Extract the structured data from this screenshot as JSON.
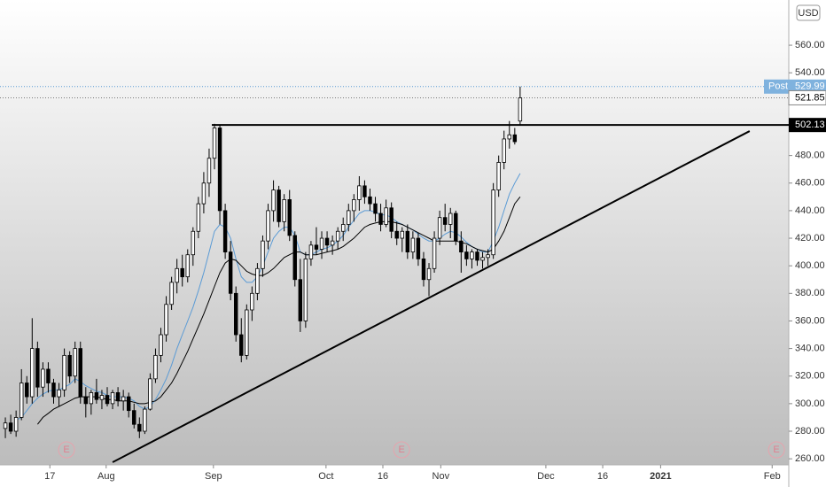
{
  "chart_data": {
    "type": "candlestick",
    "currency": "USD",
    "open": [
      282,
      286,
      280,
      290,
      315,
      305,
      340,
      312,
      325,
      315,
      305,
      310,
      335,
      320,
      340,
      305,
      300,
      308,
      303,
      306,
      300,
      308,
      302,
      305,
      295,
      285,
      280,
      296,
      318,
      335,
      350,
      372,
      388,
      398,
      392,
      408,
      425,
      445,
      460,
      478,
      500,
      440,
      410,
      380,
      350,
      335,
      368,
      380,
      398,
      418,
      440,
      455,
      432,
      448,
      422,
      390,
      360,
      405,
      415,
      412,
      420,
      415,
      418,
      425,
      430,
      440,
      448,
      458,
      450,
      445,
      438,
      430,
      442,
      425,
      420,
      425,
      410,
      420,
      405,
      390,
      398,
      420,
      435,
      430,
      438,
      418,
      410,
      405,
      410,
      404,
      406,
      408,
      455,
      475,
      492,
      495,
      505
    ],
    "high": [
      290,
      292,
      295,
      325,
      320,
      362,
      345,
      330,
      330,
      318,
      315,
      340,
      338,
      345,
      345,
      312,
      310,
      318,
      310,
      312,
      310,
      312,
      310,
      308,
      300,
      290,
      298,
      322,
      340,
      355,
      378,
      392,
      405,
      408,
      412,
      428,
      450,
      468,
      485,
      503,
      502,
      445,
      418,
      385,
      362,
      372,
      385,
      402,
      422,
      445,
      462,
      458,
      452,
      455,
      425,
      405,
      410,
      418,
      428,
      425,
      425,
      422,
      428,
      435,
      445,
      452,
      465,
      462,
      456,
      450,
      445,
      448,
      446,
      432,
      428,
      430,
      425,
      424,
      410,
      402,
      425,
      440,
      445,
      442,
      440,
      425,
      415,
      412,
      412,
      410,
      412,
      460,
      480,
      498,
      505,
      500,
      530
    ],
    "low": [
      275,
      278,
      276,
      288,
      300,
      300,
      305,
      305,
      308,
      300,
      298,
      305,
      315,
      315,
      300,
      290,
      292,
      300,
      296,
      298,
      296,
      298,
      295,
      290,
      282,
      275,
      278,
      295,
      315,
      330,
      345,
      368,
      380,
      385,
      388,
      400,
      420,
      438,
      450,
      470,
      430,
      405,
      375,
      345,
      330,
      332,
      360,
      375,
      392,
      412,
      432,
      428,
      425,
      418,
      385,
      352,
      355,
      400,
      408,
      405,
      410,
      408,
      412,
      418,
      425,
      432,
      440,
      445,
      440,
      432,
      425,
      428,
      420,
      415,
      410,
      405,
      405,
      400,
      385,
      378,
      395,
      415,
      425,
      420,
      415,
      395,
      400,
      398,
      400,
      398,
      400,
      405,
      450,
      470,
      485,
      488,
      502
    ],
    "close": [
      286,
      280,
      290,
      315,
      305,
      340,
      312,
      325,
      315,
      305,
      310,
      335,
      320,
      340,
      305,
      300,
      308,
      303,
      306,
      300,
      308,
      302,
      305,
      295,
      285,
      280,
      296,
      318,
      335,
      350,
      372,
      388,
      398,
      392,
      408,
      425,
      445,
      460,
      478,
      500,
      440,
      410,
      380,
      350,
      335,
      368,
      380,
      398,
      418,
      440,
      455,
      432,
      448,
      422,
      390,
      360,
      405,
      415,
      412,
      420,
      415,
      418,
      425,
      430,
      440,
      448,
      458,
      450,
      445,
      438,
      430,
      442,
      425,
      420,
      425,
      410,
      420,
      405,
      390,
      398,
      420,
      435,
      430,
      438,
      418,
      410,
      405,
      410,
      404,
      406,
      408,
      455,
      475,
      492,
      495,
      490,
      521.85
    ],
    "up_color": "#ffffff",
    "down_color": "#000000",
    "overlays": [
      {
        "color": "#5b9bd5",
        "values": [
          null,
          null,
          288,
          290,
          295,
          300,
          304,
          307,
          309,
          310,
          310,
          312,
          314,
          318,
          316,
          313,
          311,
          309,
          308,
          306,
          305,
          305,
          305,
          304,
          302,
          298,
          296,
          298,
          303,
          310,
          318,
          328,
          340,
          350,
          360,
          370,
          382,
          395,
          410,
          425,
          430,
          428,
          420,
          405,
          392,
          388,
          388,
          392,
          400,
          410,
          420,
          425,
          428,
          428,
          422,
          410,
          408,
          408,
          410,
          412,
          413,
          415,
          418,
          422,
          428,
          433,
          438,
          440,
          440,
          439,
          437,
          437,
          435,
          432,
          430,
          428,
          426,
          423,
          420,
          418,
          418,
          420,
          423,
          425,
          424,
          421,
          417,
          414,
          412,
          410,
          410,
          418,
          428,
          440,
          452,
          460,
          467
        ]
      },
      {
        "color": "#000000",
        "values": [
          null,
          null,
          null,
          null,
          null,
          null,
          285,
          290,
          293,
          296,
          298,
          300,
          302,
          304,
          305,
          305,
          305,
          305,
          304,
          303,
          303,
          302,
          302,
          302,
          301,
          300,
          300,
          301,
          302,
          305,
          310,
          315,
          322,
          330,
          338,
          347,
          356,
          365,
          375,
          385,
          395,
          402,
          405,
          404,
          400,
          396,
          394,
          393,
          393,
          395,
          398,
          402,
          406,
          408,
          410,
          410,
          408,
          408,
          408,
          409,
          410,
          411,
          412,
          414,
          417,
          420,
          424,
          428,
          430,
          431,
          432,
          432,
          432,
          431,
          430,
          428,
          426,
          424,
          422,
          420,
          418,
          418,
          418,
          418,
          418,
          417,
          416,
          414,
          412,
          411,
          410,
          412,
          418,
          425,
          435,
          445,
          450
        ]
      }
    ],
    "xlim": [
      -1,
      146.1
    ],
    "xticks": [
      {
        "value": 8.3,
        "label": "17"
      },
      {
        "value": 18.8,
        "label": "Aug"
      },
      {
        "value": 38.8,
        "label": "Sep"
      },
      {
        "value": 59.8,
        "label": "Oct"
      },
      {
        "value": 70.4,
        "label": "16"
      },
      {
        "value": 81.2,
        "label": "Nov"
      },
      {
        "value": 100.8,
        "label": "Dec"
      },
      {
        "value": 111.4,
        "label": "16"
      },
      {
        "value": 122.2,
        "label": "2021"
      },
      {
        "value": 143,
        "label": "Feb"
      }
    ],
    "ylim": [
      255.6,
      592.8
    ],
    "yticks": [
      {
        "value": 260,
        "label": "260.00"
      },
      {
        "value": 280,
        "label": "280.00"
      },
      {
        "value": 300,
        "label": "300.00"
      },
      {
        "value": 320,
        "label": "320.00"
      },
      {
        "value": 340,
        "label": "340.00"
      },
      {
        "value": 360,
        "label": "360.00"
      },
      {
        "value": 380,
        "label": "380.00"
      },
      {
        "value": 400,
        "label": "400.00"
      },
      {
        "value": 420,
        "label": "420.00"
      },
      {
        "value": 440,
        "label": "440.00"
      },
      {
        "value": 460,
        "label": "460.00"
      },
      {
        "value": 480,
        "label": "480.00"
      },
      {
        "value": 540,
        "label": "540.00"
      },
      {
        "value": 560,
        "label": "560.00"
      }
    ],
    "post": {
      "label": "Post",
      "value": 529.99
    },
    "level": {
      "value": 502.13,
      "from": 38.5
    },
    "trendline": {
      "x": [
        20,
        138.8
      ],
      "y": [
        257.5,
        497.7
      ]
    },
    "events": [
      {
        "x": 11.4,
        "label": "E"
      },
      {
        "x": 73.9,
        "label": "E"
      },
      {
        "x": 143.8,
        "label": "E"
      }
    ]
  }
}
